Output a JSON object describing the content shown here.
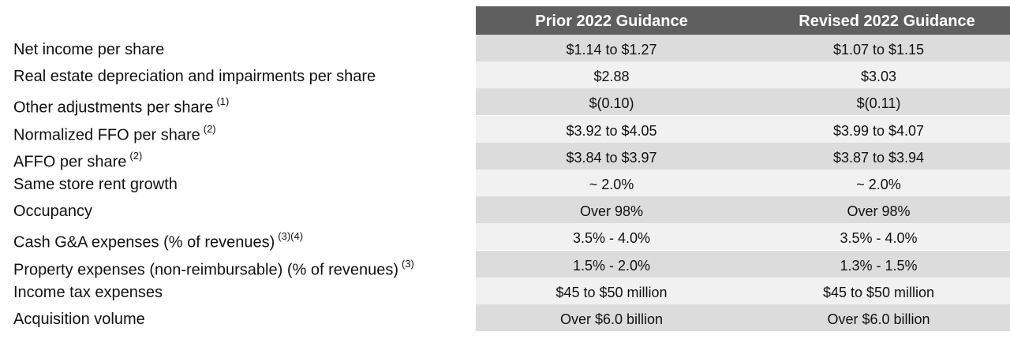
{
  "header": {
    "col1": "Prior 2022 Guidance",
    "col2": "Revised 2022 Guidance"
  },
  "rows": [
    {
      "label": "Net income per share",
      "note": "",
      "prior": "$1.14  to $1.27",
      "revised": "$1.07 to $1.15"
    },
    {
      "label": "Real estate depreciation and impairments per share",
      "note": "",
      "prior": "$2.88",
      "revised": "$3.03"
    },
    {
      "label": "Other adjustments per share",
      "note": "(1)",
      "prior": "$(0.10)",
      "revised": "$(0.11)"
    },
    {
      "label": "Normalized FFO per share",
      "note": "(2)",
      "prior": "$3.92 to $4.05",
      "revised": "$3.99 to $4.07"
    },
    {
      "label": "AFFO per share",
      "note": "(2)",
      "prior": "$3.84 to $3.97",
      "revised": "$3.87 to $3.94"
    },
    {
      "label": "Same store rent growth",
      "note": "",
      "prior": "~ 2.0%",
      "revised": "~ 2.0%"
    },
    {
      "label": "Occupancy",
      "note": "",
      "prior": "Over 98%",
      "revised": "Over 98%"
    },
    {
      "label": "Cash G&A expenses (% of revenues)",
      "note": "(3)(4)",
      "prior": "3.5% - 4.0%",
      "revised": "3.5% - 4.0%"
    },
    {
      "label": "Property expenses (non-reimbursable) (% of revenues)",
      "note": "(3)",
      "prior": "1.5% - 2.0%",
      "revised": "1.3% - 1.5%"
    },
    {
      "label": "Income tax expenses",
      "note": "",
      "prior": "$45 to $50 million",
      "revised": "$45 to $50 million"
    },
    {
      "label": "Acquisition volume",
      "note": "",
      "prior": "Over $6.0 billion",
      "revised": "Over $6.0 billion"
    }
  ],
  "colors": {
    "header_bg": "#5f5f5f",
    "header_text": "#ffffff",
    "row_shaded": "#dcdcdc",
    "row_plain": "#f1f1f1"
  }
}
